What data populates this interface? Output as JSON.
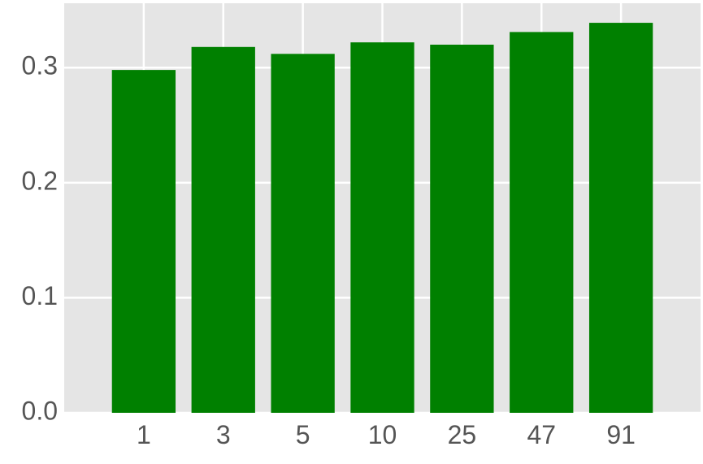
{
  "chart_data": {
    "type": "bar",
    "title": "",
    "xlabel": "",
    "ylabel": "",
    "categories": [
      "1",
      "3",
      "5",
      "10",
      "25",
      "47",
      "91"
    ],
    "values": [
      0.298,
      0.318,
      0.312,
      0.322,
      0.32,
      0.331,
      0.339
    ],
    "ylim": [
      0.0,
      0.356
    ],
    "yticks": [
      0.0,
      0.1,
      0.2,
      0.3
    ],
    "ytick_labels": [
      "0.0",
      "0.1",
      "0.2",
      "0.3"
    ],
    "grid": true,
    "bar_color": "#008000",
    "background_color": "#e5e5e5",
    "grid_color": "#ffffff"
  }
}
